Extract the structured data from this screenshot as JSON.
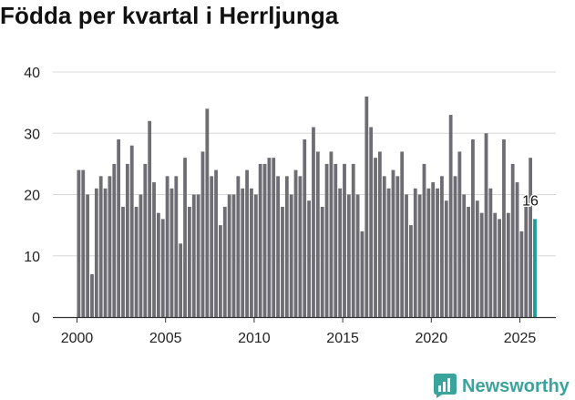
{
  "title": "Födda per kvartal i Herrljunga",
  "brand": {
    "name": "Newsworthy",
    "icon": "newsworthy-logo-icon",
    "color": "#3aa39b"
  },
  "colors": {
    "bar": "#6d6d73",
    "highlight": "#1a9e94",
    "grid": "#d8d8d8",
    "axis": "#333333",
    "text": "#222222"
  },
  "chart_data": {
    "type": "bar",
    "title": "Födda per kvartal i Herrljunga",
    "xlabel": "",
    "ylabel": "",
    "ylim": [
      0,
      40
    ],
    "yticks": [
      0,
      10,
      20,
      30,
      40
    ],
    "xticks": [
      2000,
      2005,
      2010,
      2015,
      2020,
      2025
    ],
    "grid": true,
    "start_period": "2000 Q1",
    "values": [
      24,
      24,
      20,
      7,
      21,
      23,
      21,
      23,
      25,
      29,
      18,
      25,
      28,
      18,
      20,
      25,
      32,
      22,
      17,
      16,
      23,
      21,
      23,
      12,
      26,
      18,
      20,
      20,
      27,
      34,
      23,
      24,
      15,
      18,
      20,
      20,
      23,
      21,
      24,
      21,
      20,
      25,
      25,
      26,
      26,
      23,
      18,
      23,
      20,
      24,
      23,
      29,
      19,
      31,
      27,
      18,
      25,
      27,
      25,
      21,
      25,
      20,
      25,
      20,
      14,
      36,
      31,
      26,
      27,
      23,
      21,
      24,
      23,
      27,
      20,
      15,
      21,
      20,
      25,
      21,
      22,
      21,
      23,
      19,
      33,
      23,
      27,
      20,
      18,
      29,
      19,
      17,
      30,
      21,
      17,
      16,
      29,
      17,
      25,
      22,
      14,
      19,
      26,
      16
    ],
    "highlight_last": true,
    "last_label": "16"
  }
}
